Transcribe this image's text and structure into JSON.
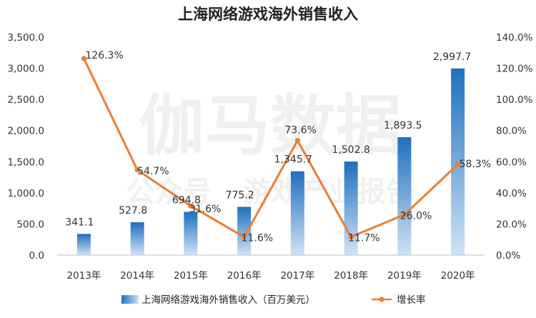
{
  "chart_data": {
    "type": "bar+line",
    "title": "上海网络游戏海外销售收入",
    "categories": [
      "2013年",
      "2014年",
      "2015年",
      "2016年",
      "2017年",
      "2018年",
      "2019年",
      "2020年"
    ],
    "series": [
      {
        "name": "上海网络游戏海外销售收入（百万美元）",
        "type": "bar",
        "axis": "left",
        "values": [
          341.1,
          527.8,
          694.8,
          775.2,
          1345.7,
          1502.8,
          1893.5,
          2997.7
        ],
        "labels": [
          "341.1",
          "527.8",
          "694.8",
          "775.2",
          "1,345.7",
          "1,502.8",
          "1,893.5",
          "2,997.7"
        ]
      },
      {
        "name": "增长率",
        "type": "line",
        "axis": "right",
        "values": [
          126.3,
          54.7,
          31.6,
          11.6,
          73.6,
          11.7,
          26.0,
          58.3
        ],
        "labels": [
          "126.3%",
          "54.7%",
          "31.6%",
          "11.6%",
          "73.6%",
          "11.7%",
          "26.0%",
          "58.3%"
        ]
      }
    ],
    "y_left": {
      "lim": [
        0,
        3500
      ],
      "ticks": [
        0,
        500,
        1000,
        1500,
        2000,
        2500,
        3000,
        3500
      ],
      "tick_labels": [
        "0.0",
        "500.0",
        "1,000.0",
        "1,500.0",
        "2,000.0",
        "2,500.0",
        "3,000.0",
        "3,500.0"
      ]
    },
    "y_right": {
      "lim": [
        0,
        140
      ],
      "ticks": [
        0,
        20,
        40,
        60,
        80,
        100,
        120,
        140
      ],
      "tick_labels": [
        "0.0%",
        "20.0%",
        "40.0%",
        "60.0%",
        "80.0%",
        "100.0%",
        "120.0%",
        "140.0%"
      ]
    },
    "grid": false,
    "legend_position": "bottom-center",
    "watermark": {
      "line1": "伽马数据",
      "line2": "公众号 · 游戏产业报告"
    }
  },
  "colors": {
    "bar_top": "#1f6fbf",
    "bar_bottom": "#cfe3f5",
    "line": "#ed7d31",
    "axis": "#bfbfbf"
  }
}
